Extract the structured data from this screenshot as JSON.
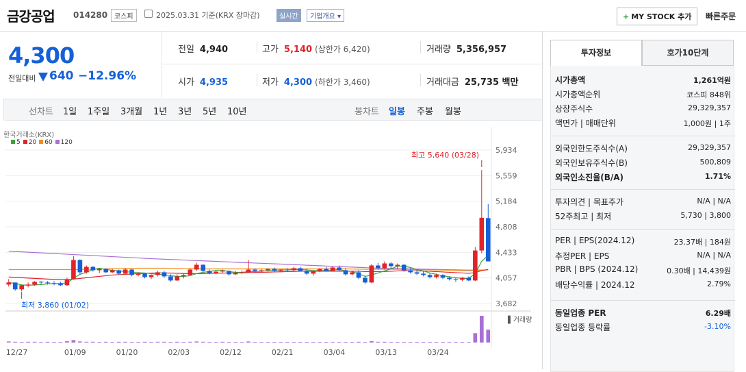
{
  "header": {
    "name": "금강공업",
    "code": "014280",
    "market": "코스피",
    "date": "2025.03.31  기준(KRX 장마감)",
    "realtime": "실시간",
    "company_info": "기업개요",
    "mystock": "MY STOCK 추가",
    "quick_order": "빠른주문"
  },
  "price": {
    "now": "4,300",
    "diff_label": "전일대비",
    "diff": "640",
    "pct": "−12.96%"
  },
  "stats": {
    "prev_label": "전일",
    "prev": "4,940",
    "high_label": "고가",
    "high": "5,140",
    "upper": "(상한가 6,420)",
    "volume_label": "거래량",
    "volume": "5,356,957",
    "open_label": "시가",
    "open": "4,935",
    "low_label": "저가",
    "low": "4,300",
    "lower": "(하한가 3,460)",
    "amount_label": "거래대금",
    "amount": "25,735 백만"
  },
  "chart_tabs": {
    "line_label": "선차트",
    "line": [
      "1일",
      "1주일",
      "3개월",
      "1년",
      "3년",
      "5년",
      "10년"
    ],
    "candle_label": "봉차트",
    "candle": [
      "일봉",
      "주봉",
      "월봉"
    ],
    "candle_active": "일봉"
  },
  "chart_data": {
    "type": "candlestick",
    "source": "한국거래소(KRX)",
    "legend": [
      {
        "name": "5",
        "color": "#3ca33c"
      },
      {
        "name": "20",
        "color": "#e0242a"
      },
      {
        "name": "60",
        "color": "#f08c1e"
      },
      {
        "name": "120",
        "color": "#a86fd6"
      }
    ],
    "ylim": [
      3682,
      5934
    ],
    "y_ticks": [
      "5,934",
      "5,559",
      "5,184",
      "4,808",
      "4,433",
      "4,057",
      "3,682"
    ],
    "x_ticks": [
      "12/27",
      "01/09",
      "01/20",
      "02/03",
      "02/12",
      "02/21",
      "03/04",
      "03/13",
      "03/24"
    ],
    "max_label": "최고 5,640 (03/28)",
    "min_label": "최저 3,860 (01/02)",
    "volume_label": "거래량",
    "candles": [
      [
        3960,
        4040,
        3930,
        3990
      ],
      [
        3990,
        3990,
        3870,
        3890
      ],
      [
        3890,
        3960,
        3860,
        3950
      ],
      [
        3950,
        3990,
        3920,
        3960
      ],
      [
        3960,
        4010,
        3940,
        4000
      ],
      [
        4000,
        4010,
        3970,
        3990
      ],
      [
        3990,
        4010,
        3960,
        3980
      ],
      [
        3980,
        4010,
        3950,
        3970
      ],
      [
        3970,
        4000,
        3940,
        3950
      ],
      [
        3950,
        4060,
        3940,
        4040
      ],
      [
        4040,
        4380,
        4030,
        4320
      ],
      [
        4320,
        4330,
        4100,
        4140
      ],
      [
        4140,
        4240,
        4120,
        4220
      ],
      [
        4220,
        4230,
        4150,
        4170
      ],
      [
        4170,
        4200,
        4130,
        4190
      ],
      [
        4190,
        4200,
        4130,
        4140
      ],
      [
        4140,
        4190,
        4130,
        4170
      ],
      [
        4170,
        4180,
        4100,
        4120
      ],
      [
        4120,
        4200,
        4110,
        4180
      ],
      [
        4180,
        4190,
        4080,
        4100
      ],
      [
        4100,
        4140,
        4080,
        4120
      ],
      [
        4120,
        4130,
        4050,
        4070
      ],
      [
        4070,
        4110,
        4040,
        4100
      ],
      [
        4100,
        4160,
        4080,
        4140
      ],
      [
        4140,
        4160,
        4060,
        4080
      ],
      [
        4080,
        4110,
        4000,
        4020
      ],
      [
        4020,
        4110,
        4010,
        4080
      ],
      [
        4080,
        4120,
        4050,
        4100
      ],
      [
        4100,
        4200,
        4090,
        4180
      ],
      [
        4180,
        4280,
        4160,
        4250
      ],
      [
        4250,
        4260,
        4140,
        4160
      ],
      [
        4160,
        4180,
        4110,
        4130
      ],
      [
        4130,
        4160,
        4110,
        4150
      ],
      [
        4150,
        4180,
        4130,
        4160
      ],
      [
        4160,
        4170,
        4090,
        4110
      ],
      [
        4110,
        4160,
        4100,
        4130
      ],
      [
        4130,
        4170,
        4110,
        4140
      ],
      [
        4140,
        4320,
        4130,
        4180
      ],
      [
        4180,
        4200,
        4140,
        4160
      ],
      [
        4160,
        4190,
        4130,
        4170
      ],
      [
        4170,
        4200,
        4150,
        4190
      ],
      [
        4190,
        4210,
        4150,
        4160
      ],
      [
        4160,
        4190,
        4140,
        4180
      ],
      [
        4180,
        4200,
        4150,
        4170
      ],
      [
        4170,
        4220,
        4160,
        4200
      ],
      [
        4200,
        4220,
        4150,
        4160
      ],
      [
        4160,
        4190,
        4100,
        4120
      ],
      [
        4120,
        4170,
        4090,
        4150
      ],
      [
        4150,
        4200,
        4140,
        4190
      ],
      [
        4190,
        4220,
        4150,
        4160
      ],
      [
        4160,
        4230,
        4150,
        4210
      ],
      [
        4210,
        4240,
        4150,
        4170
      ],
      [
        4170,
        4200,
        4090,
        4110
      ],
      [
        4110,
        4160,
        4100,
        4140
      ],
      [
        4140,
        4170,
        4040,
        4060
      ],
      [
        4060,
        4090,
        3970,
        3990
      ],
      [
        3990,
        4260,
        3980,
        4240
      ],
      [
        4240,
        4280,
        4180,
        4200
      ],
      [
        4200,
        4300,
        4180,
        4270
      ],
      [
        4270,
        4290,
        4200,
        4230
      ],
      [
        4230,
        4270,
        4190,
        4250
      ],
      [
        4250,
        4260,
        4150,
        4170
      ],
      [
        4170,
        4200,
        4120,
        4140
      ],
      [
        4140,
        4180,
        4100,
        4120
      ],
      [
        4120,
        4160,
        4080,
        4100
      ],
      [
        4100,
        4130,
        4050,
        4070
      ],
      [
        4070,
        4120,
        4050,
        4100
      ],
      [
        4100,
        4110,
        4040,
        4060
      ],
      [
        4060,
        4080,
        4020,
        4040
      ],
      [
        4040,
        4060,
        4000,
        4030
      ],
      [
        4030,
        4070,
        4010,
        4060
      ],
      [
        4060,
        4080,
        4010,
        4020
      ],
      [
        4020,
        4510,
        4010,
        4460
      ],
      [
        4460,
        5640,
        4420,
        4940
      ],
      [
        4935,
        5140,
        4300,
        4300
      ]
    ],
    "volume": [
      0.04,
      0.03,
      0.02,
      0.03,
      0.03,
      0.02,
      0.03,
      0.02,
      0.02,
      0.05,
      0.09,
      0.04,
      0.03,
      0.03,
      0.02,
      0.03,
      0.02,
      0.03,
      0.03,
      0.02,
      0.02,
      0.03,
      0.02,
      0.03,
      0.03,
      0.02,
      0.03,
      0.02,
      0.03,
      0.04,
      0.03,
      0.02,
      0.02,
      0.03,
      0.02,
      0.02,
      0.02,
      0.04,
      0.02,
      0.02,
      0.02,
      0.02,
      0.02,
      0.02,
      0.02,
      0.02,
      0.02,
      0.02,
      0.02,
      0.02,
      0.02,
      0.02,
      0.02,
      0.02,
      0.03,
      0.02,
      0.05,
      0.03,
      0.03,
      0.02,
      0.02,
      0.02,
      0.02,
      0.02,
      0.02,
      0.02,
      0.02,
      0.02,
      0.02,
      0.02,
      0.02,
      0.02,
      0.35,
      1.0,
      0.48
    ],
    "ma5": [
      3990,
      3975,
      3955,
      3950,
      3955,
      3960,
      3970,
      3975,
      3975,
      3985,
      4050,
      4110,
      4140,
      4180,
      4200,
      4180,
      4170,
      4160,
      4150,
      4140,
      4135,
      4130,
      4120,
      4110,
      4105,
      4090,
      4080,
      4080,
      4090,
      4120,
      4140,
      4150,
      4170,
      4170,
      4150,
      4140,
      4140,
      4150,
      4150,
      4155,
      4165,
      4170,
      4175,
      4175,
      4180,
      4180,
      4175,
      4165,
      4165,
      4165,
      4170,
      4180,
      4160,
      4150,
      4120,
      4080,
      4100,
      4130,
      4160,
      4190,
      4230,
      4230,
      4210,
      4180,
      4160,
      4130,
      4110,
      4090,
      4075,
      4060,
      4050,
      4050,
      4120,
      4300,
      4390
    ],
    "ma20": [
      4070,
      4065,
      4060,
      4055,
      4050,
      4045,
      4040,
      4035,
      4030,
      4030,
      4040,
      4050,
      4060,
      4070,
      4080,
      4090,
      4100,
      4105,
      4110,
      4115,
      4120,
      4125,
      4128,
      4130,
      4130,
      4128,
      4125,
      4122,
      4120,
      4120,
      4122,
      4124,
      4126,
      4128,
      4130,
      4130,
      4132,
      4135,
      4138,
      4140,
      4142,
      4145,
      4147,
      4150,
      4152,
      4155,
      4155,
      4155,
      4155,
      4155,
      4155,
      4156,
      4156,
      4156,
      4155,
      4150,
      4150,
      4150,
      4152,
      4155,
      4160,
      4162,
      4162,
      4160,
      4158,
      4155,
      4150,
      4145,
      4140,
      4135,
      4130,
      4125,
      4135,
      4165,
      4180
    ],
    "ma60": [
      4180,
      4180,
      4180,
      4180,
      4180,
      4180,
      4180,
      4180,
      4180,
      4180,
      4180,
      4182,
      4184,
      4186,
      4188,
      4190,
      4192,
      4194,
      4196,
      4198,
      4200,
      4200,
      4200,
      4200,
      4200,
      4198,
      4196,
      4194,
      4192,
      4190,
      4190,
      4190,
      4190,
      4190,
      4190,
      4190,
      4190,
      4190,
      4190,
      4190,
      4190,
      4190,
      4190,
      4190,
      4190,
      4190,
      4190,
      4190,
      4190,
      4190,
      4190,
      4190,
      4190,
      4188,
      4186,
      4184,
      4184,
      4184,
      4184,
      4184,
      4184,
      4184,
      4182,
      4180,
      4178,
      4176,
      4174,
      4172,
      4170,
      4168,
      4166,
      4164,
      4166,
      4172,
      4176
    ],
    "ma120": [
      4450,
      4445,
      4440,
      4435,
      4430,
      4425,
      4420,
      4415,
      4410,
      4405,
      4400,
      4395,
      4390,
      4385,
      4380,
      4375,
      4370,
      4365,
      4360,
      4355,
      4350,
      4345,
      4340,
      4336,
      4332,
      4328,
      4324,
      4320,
      4316,
      4312,
      4308,
      4304,
      4300,
      4296,
      4292,
      4288,
      4284,
      4280,
      4276,
      4272,
      4268,
      4264,
      4260,
      4256,
      4252,
      4248,
      4244,
      4240,
      4236,
      4232,
      4228,
      4224,
      4220,
      4216,
      4212,
      4208,
      4204,
      4200,
      4198,
      4196,
      4194,
      4192,
      4190,
      4188,
      4186,
      4184,
      4182,
      4180,
      4178,
      4176,
      4174,
      4172,
      4172,
      4174,
      4176
    ]
  },
  "right_panel": {
    "tab1": "투자정보",
    "tab2": "호가10단계",
    "group1": [
      {
        "k": "시가총액",
        "v": "1,261억원",
        "bold": true
      },
      {
        "k": "시가총액순위",
        "v": "코스피 848위"
      },
      {
        "k": "상장주식수",
        "v": "29,329,357"
      },
      {
        "k": "액면가 | 매매단위",
        "v": "1,000원 | 1주"
      }
    ],
    "group2": [
      {
        "k": "외국인한도주식수(A)",
        "v": "29,329,357"
      },
      {
        "k": "외국인보유주식수(B)",
        "v": "500,809"
      },
      {
        "k": "외국인소진율(B/A)",
        "v": "1.71%",
        "bold": true
      }
    ],
    "group3": [
      {
        "k": "투자의견 | 목표주가",
        "v": "N/A | N/A"
      },
      {
        "k": "52주최고 | 최저",
        "v": "5,730 | 3,800"
      }
    ],
    "group4": [
      {
        "k": "PER | EPS(2024.12)",
        "v": "23.37배 | 184원"
      },
      {
        "k": "추정PER | EPS",
        "v": "N/A | N/A"
      },
      {
        "k": "PBR | BPS (2024.12)",
        "v": "0.30배 | 14,439원"
      },
      {
        "k": "배당수익률 | 2024.12",
        "v": "2.79%"
      }
    ],
    "group5": [
      {
        "k": "동일업종 PER",
        "v": "6.29배",
        "bold": true
      },
      {
        "k": "동일업종 등락률",
        "v": "-3.10%",
        "color": "#1560d8"
      }
    ]
  }
}
